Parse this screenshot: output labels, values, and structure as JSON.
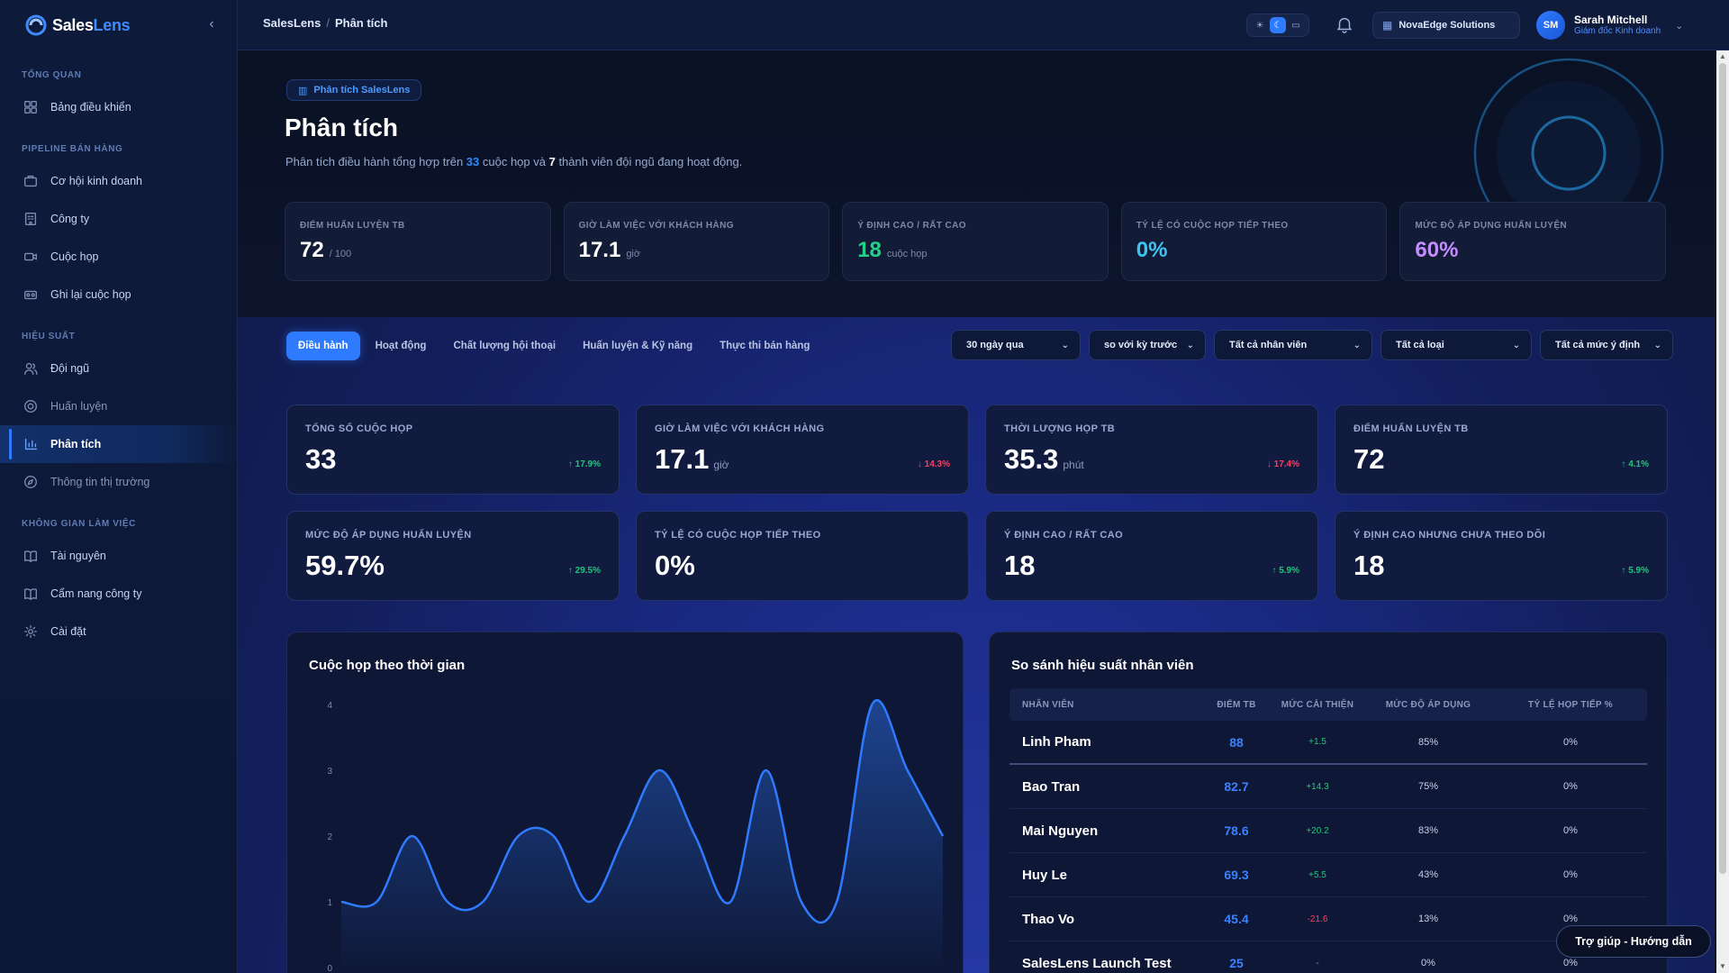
{
  "app": {
    "logo_a": "Sales",
    "logo_b": "Lens"
  },
  "sidebar": {
    "sections": [
      {
        "title": "TỔNG QUAN",
        "items": [
          {
            "label": "Bảng điều khiển",
            "icon": "dashboard-icon"
          }
        ]
      },
      {
        "title": "PIPELINE BÁN HÀNG",
        "items": [
          {
            "label": "Cơ hội kinh doanh",
            "icon": "briefcase-icon"
          },
          {
            "label": "Công ty",
            "icon": "building-icon"
          },
          {
            "label": "Cuộc họp",
            "icon": "video-icon"
          },
          {
            "label": "Ghi lại cuộc họp",
            "icon": "recorder-icon"
          }
        ]
      },
      {
        "title": "HIỆU SUẤT",
        "items": [
          {
            "label": "Đội ngũ",
            "icon": "users-icon"
          },
          {
            "label": "Huấn luyện",
            "icon": "target-icon"
          },
          {
            "label": "Phân tích",
            "icon": "bar-chart-icon",
            "active": true
          },
          {
            "label": "Thông tin thị trường",
            "icon": "compass-icon"
          }
        ]
      },
      {
        "title": "KHÔNG GIAN LÀM VIỆC",
        "items": [
          {
            "label": "Tài nguyên",
            "icon": "book-icon"
          },
          {
            "label": "Cẩm nang công ty",
            "icon": "handbook-icon"
          },
          {
            "label": "Cài đặt",
            "icon": "gear-icon"
          }
        ]
      }
    ]
  },
  "topbar": {
    "breadcrumb": [
      "SalesLens",
      "Phân tích"
    ],
    "org": "NovaEdge Solutions",
    "user": {
      "initials": "SM",
      "name": "Sarah Mitchell",
      "role": "Giám đốc Kinh doanh"
    }
  },
  "hero": {
    "badge": "Phân tích SalesLens",
    "title": "Phân tích",
    "subtitle_parts": [
      "Phân tích điều hành tổng hợp trên ",
      "33",
      " cuộc họp và ",
      "7",
      " thành viên đội ngũ đang hoạt động."
    ],
    "kpis": [
      {
        "label": "ĐIỂM HUẤN LUYỆN TB",
        "value": "72",
        "unit": "/ 100",
        "color": "white"
      },
      {
        "label": "GIỜ LÀM VIỆC VỚI KHÁCH HÀNG",
        "value": "17.1",
        "unit": "giờ",
        "color": "white"
      },
      {
        "label": "Ý ĐỊNH CAO / RẤT CAO",
        "value": "18",
        "unit": "cuộc họp",
        "color": "green"
      },
      {
        "label": "TỶ LỆ CÓ CUỘC HỌP TIẾP THEO",
        "value": "0%",
        "unit": "",
        "color": "cyan"
      },
      {
        "label": "MỨC ĐỘ ÁP DỤNG HUẤN LUYỆN",
        "value": "60%",
        "unit": "",
        "color": "purple"
      }
    ]
  },
  "tabs": [
    "Điều hành",
    "Hoạt động",
    "Chất lượng hội thoại",
    "Huấn luyện & Kỹ năng",
    "Thực thi bán hàng"
  ],
  "active_tab": 0,
  "filters": [
    {
      "value": "30 ngày qua",
      "width": 144
    },
    {
      "value": "so với kỳ trước",
      "width": 130
    },
    {
      "value": "Tất cả nhân viên",
      "width": 176
    },
    {
      "value": "Tất cả loại",
      "width": 168
    },
    {
      "value": "Tất cả mức ý định",
      "width": 148
    }
  ],
  "kpis": [
    {
      "label": "TỔNG SỐ CUỘC HỌP",
      "value": "33",
      "unit": "",
      "delta": "↑ 17.9%",
      "dir": "up"
    },
    {
      "label": "GIỜ LÀM VIỆC VỚI KHÁCH HÀNG",
      "value": "17.1",
      "unit": "giờ",
      "delta": "↓ 14.3%",
      "dir": "down"
    },
    {
      "label": "THỜI LƯỢNG HỌP TB",
      "value": "35.3",
      "unit": "phút",
      "delta": "↓ 17.4%",
      "dir": "down"
    },
    {
      "label": "ĐIỂM HUẤN LUYỆN TB",
      "value": "72",
      "unit": "",
      "delta": "↑ 4.1%",
      "dir": "up"
    },
    {
      "label": "MỨC ĐỘ ÁP DỤNG HUẤN LUYỆN",
      "value": "59.7%",
      "unit": "",
      "delta": "↑ 29.5%",
      "dir": "up"
    },
    {
      "label": "TỶ LỆ CÓ CUỘC HỌP TIẾP THEO",
      "value": "0%",
      "unit": "",
      "delta": "",
      "dir": "up"
    },
    {
      "label": "Ý ĐỊNH CAO / RẤT CAO",
      "value": "18",
      "unit": "",
      "delta": "↑ 5.9%",
      "dir": "up"
    },
    {
      "label": "Ý ĐỊNH CAO NHƯNG CHƯA THEO DÕI",
      "value": "18",
      "unit": "",
      "delta": "↑ 5.9%",
      "dir": "up"
    }
  ],
  "meetings_chart": {
    "title": "Cuộc họp theo thời gian",
    "chart_data": {
      "type": "area",
      "title": "Cuộc họp theo thời gian",
      "y_ticks": [
        0,
        1,
        2,
        3,
        4
      ],
      "ylim": [
        0,
        4
      ],
      "values": [
        1,
        1,
        2,
        1,
        1,
        2,
        2,
        1,
        2,
        3,
        2,
        1,
        3,
        1,
        1,
        4,
        3,
        2
      ],
      "line_color": "#2f7bff"
    }
  },
  "performance_table": {
    "title": "So sánh hiệu suất nhân viên",
    "columns": [
      "NHÂN VIÊN",
      "ĐIỂM TB",
      "MỨC CẢI THIỆN",
      "MỨC ĐỘ ÁP DỤNG",
      "TỶ LỆ HỌP TIẾP %"
    ],
    "rows": [
      {
        "name": "Linh Pham",
        "score": "88",
        "improvement": "+1.5",
        "trend": "pos",
        "adoption": "85%",
        "followup": "0%"
      },
      {
        "name": "Bao Tran",
        "score": "82.7",
        "improvement": "+14.3",
        "trend": "pos",
        "adoption": "75%",
        "followup": "0%"
      },
      {
        "name": "Mai Nguyen",
        "score": "78.6",
        "improvement": "+20.2",
        "trend": "pos",
        "adoption": "83%",
        "followup": "0%"
      },
      {
        "name": "Huy Le",
        "score": "69.3",
        "improvement": "+5.5",
        "trend": "pos",
        "adoption": "43%",
        "followup": "0%"
      },
      {
        "name": "Thao Vo",
        "score": "45.4",
        "improvement": "-21.6",
        "trend": "neg",
        "adoption": "13%",
        "followup": "0%"
      },
      {
        "name": "SalesLens Launch Test",
        "score": "25",
        "improvement": "-",
        "trend": "neu",
        "adoption": "0%",
        "followup": "0%"
      }
    ]
  },
  "help": {
    "label": "Trợ giúp - Hướng dẫn"
  }
}
